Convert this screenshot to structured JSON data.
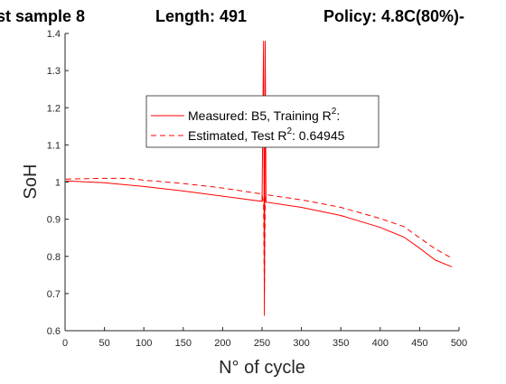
{
  "chart_data": {
    "type": "line",
    "title_parts": [
      "st sample 8",
      "Length: 491",
      "Policy: 4.8C(80%)-"
    ],
    "xlabel": "N° of cycle",
    "ylabel": "SoH",
    "xlim": [
      0,
      500
    ],
    "ylim": [
      0.6,
      1.4
    ],
    "xticks": [
      0,
      50,
      100,
      150,
      200,
      250,
      300,
      350,
      400,
      450,
      500
    ],
    "yticks": [
      0.6,
      0.7,
      0.8,
      0.9,
      1,
      1.1,
      1.2,
      1.3,
      1.4
    ],
    "xtick_labels": [
      "0",
      "50",
      "100",
      "150",
      "200",
      "250",
      "300",
      "350",
      "400",
      "450",
      "500"
    ],
    "ytick_labels": [
      "0.6",
      "0.7",
      "0.8",
      "0.9",
      "1",
      "1.1",
      "1.2",
      "1.3",
      "1.4"
    ],
    "grid": false,
    "legend_position": "upper-center",
    "series": [
      {
        "name": "Measured: B5,  Training R²:",
        "color": "#ff0000",
        "style": "solid",
        "x": [
          1,
          50,
          100,
          150,
          200,
          250,
          252,
          253,
          254,
          255,
          300,
          350,
          400,
          430,
          450,
          470,
          491
        ],
        "y": [
          1.003,
          0.998,
          0.988,
          0.976,
          0.962,
          0.948,
          1.38,
          0.64,
          1.38,
          0.946,
          0.932,
          0.91,
          0.878,
          0.852,
          0.822,
          0.79,
          0.772
        ]
      },
      {
        "name": "Estimated,  Test R²: 0.64945",
        "color": "#ff0000",
        "style": "dashed",
        "x": [
          1,
          50,
          80,
          100,
          150,
          200,
          250,
          252,
          253,
          254,
          255,
          300,
          350,
          400,
          430,
          450,
          470,
          491
        ],
        "y": [
          1.008,
          1.01,
          1.01,
          1.005,
          0.996,
          0.984,
          0.968,
          0.94,
          0.7,
          0.94,
          0.966,
          0.952,
          0.932,
          0.902,
          0.88,
          0.85,
          0.82,
          0.795
        ]
      }
    ]
  },
  "legend": {
    "entries": [
      {
        "prefix": "Measured: B5,  Training R",
        "sup": "2",
        "suffix": ":"
      },
      {
        "prefix": "Estimated,  Test R",
        "sup": "2",
        "suffix": ": 0.64945"
      }
    ]
  }
}
